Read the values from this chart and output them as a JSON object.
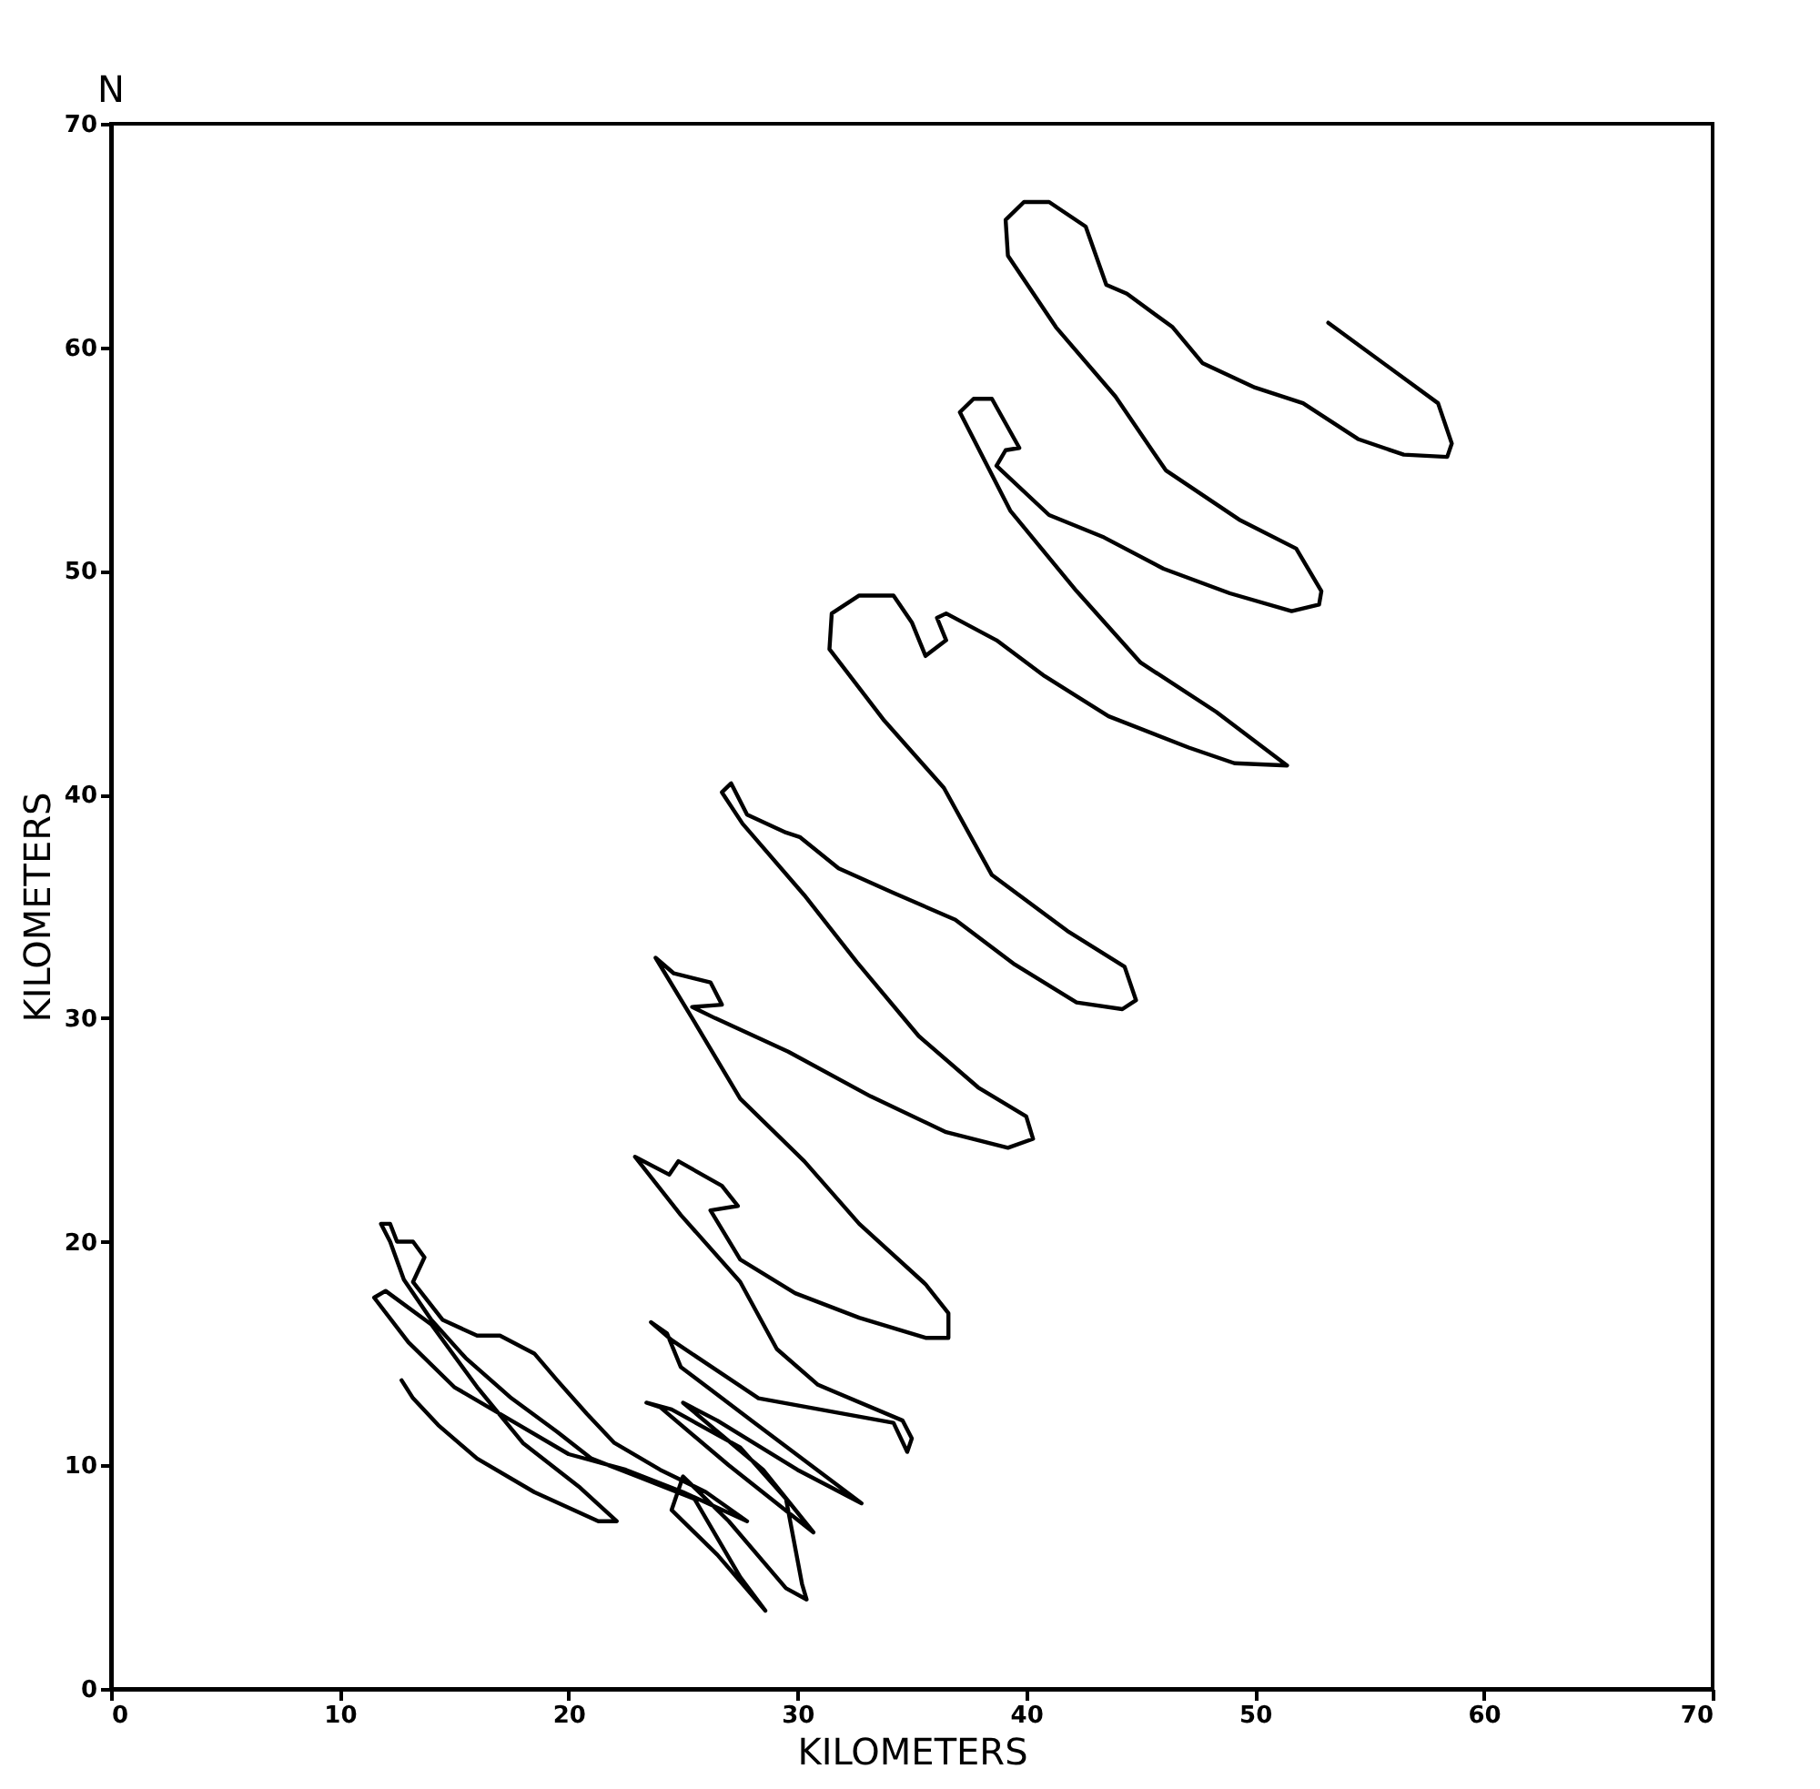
{
  "chart_data": {
    "type": "line",
    "xlabel": "KILOMETERS",
    "ylabel": "KILOMETERS",
    "annotations": [
      "N"
    ],
    "xlim": [
      0,
      70
    ],
    "ylim": [
      0,
      70
    ],
    "xticks": [
      0,
      10,
      20,
      30,
      40,
      50,
      60,
      70
    ],
    "yticks": [
      0,
      10,
      20,
      30,
      40,
      50,
      60,
      70
    ],
    "grid": false,
    "marker": "none",
    "line_style": "solid",
    "series": [
      {
        "color": "#000000",
        "x": [
          53.2,
          58.0,
          58.6,
          58.4,
          56.5,
          54.5,
          52.1,
          50.0,
          47.7,
          46.4,
          44.4,
          43.5,
          42.6,
          41.0,
          39.9,
          39.1,
          39.2,
          41.3,
          43.9,
          46.1,
          49.3,
          51.8,
          52.9,
          52.8,
          51.6,
          48.9,
          46.0,
          43.4,
          41.0,
          38.7,
          39.1,
          39.7,
          39.1,
          38.5,
          37.7,
          37.1,
          39.3,
          42.2,
          45.0,
          48.3,
          51.4,
          49.1,
          47.1,
          43.6,
          40.8,
          38.7,
          36.5,
          36.1,
          36.5,
          35.6,
          35.0,
          34.2,
          32.7,
          31.5,
          31.4,
          33.8,
          36.4,
          38.5,
          41.8,
          44.3,
          44.8,
          44.2,
          42.2,
          39.5,
          36.9,
          34.2,
          31.8,
          30.1,
          29.5,
          27.8,
          27.1,
          26.7,
          27.6,
          30.3,
          32.6,
          35.3,
          37.9,
          40.0,
          40.3,
          39.2,
          36.5,
          33.2,
          29.6,
          26.4,
          25.4,
          26.7,
          26.2,
          24.6,
          23.8,
          25.4,
          27.5,
          30.3,
          32.7,
          35.6,
          36.6,
          36.6,
          35.6,
          32.7,
          29.9,
          27.5,
          26.2,
          27.4,
          26.7,
          24.8,
          24.4,
          22.9,
          24.9,
          27.5,
          29.1,
          30.9,
          34.6,
          35.0,
          34.8,
          34.2,
          28.3,
          24.5,
          23.6,
          24.3,
          24.9,
          28.0,
          32.8,
          30.0,
          26.5,
          25.0,
          28.5,
          30.7,
          27.0,
          24.0,
          23.4,
          24.5,
          27.5,
          29.5,
          30.2,
          30.4,
          29.5,
          27.0,
          25.0,
          24.5,
          26.5,
          28.6,
          27.5,
          25.5,
          23.0,
          21.0,
          19.5,
          17.5,
          15.5,
          14.0,
          12.8,
          12.2,
          11.8,
          12.2,
          12.5,
          13.2,
          13.7,
          13.2,
          14.5,
          16.0,
          17.0,
          18.5,
          19.5,
          20.8,
          22.0,
          24.0,
          26.0,
          27.8,
          25.0,
          22.5,
          20.0,
          17.5,
          15.0,
          13.0,
          11.5,
          12.0,
          14.0,
          16.0,
          18.0,
          20.5,
          22.1,
          21.3,
          18.5,
          16.0,
          14.3,
          13.2,
          12.7
        ],
        "values": [
          61.1,
          57.5,
          55.7,
          55.1,
          55.2,
          55.9,
          57.5,
          58.2,
          59.3,
          60.9,
          62.4,
          62.8,
          65.4,
          66.5,
          66.5,
          65.7,
          64.1,
          60.9,
          57.8,
          54.5,
          52.3,
          51.0,
          49.1,
          48.5,
          48.2,
          49.0,
          50.1,
          51.5,
          52.5,
          54.7,
          55.4,
          55.5,
          56.6,
          57.7,
          57.7,
          57.1,
          52.7,
          49.1,
          45.9,
          43.7,
          41.3,
          41.4,
          42.1,
          43.5,
          45.3,
          46.9,
          48.1,
          47.9,
          46.9,
          46.2,
          47.7,
          48.9,
          48.9,
          48.1,
          46.5,
          43.3,
          40.3,
          36.4,
          33.9,
          32.3,
          30.8,
          30.4,
          30.7,
          32.4,
          34.4,
          35.6,
          36.7,
          38.1,
          38.3,
          39.1,
          40.5,
          40.1,
          38.7,
          35.5,
          32.5,
          29.2,
          26.9,
          25.6,
          24.6,
          24.2,
          24.9,
          26.5,
          28.5,
          30.0,
          30.5,
          30.6,
          31.6,
          32.0,
          32.7,
          30.0,
          26.4,
          23.6,
          20.8,
          18.1,
          16.8,
          15.7,
          15.7,
          16.6,
          17.7,
          19.2,
          21.4,
          21.6,
          22.5,
          23.6,
          23.0,
          23.8,
          21.2,
          18.2,
          15.2,
          13.6,
          12.0,
          11.2,
          10.6,
          11.9,
          13.0,
          15.6,
          16.4,
          15.9,
          14.4,
          12.0,
          8.3,
          9.8,
          12.0,
          12.8,
          9.8,
          7.0,
          10.0,
          12.6,
          12.8,
          12.5,
          10.8,
          8.5,
          4.7,
          4.0,
          4.5,
          7.5,
          9.5,
          8.0,
          6.0,
          3.5,
          5.0,
          8.5,
          9.5,
          10.3,
          11.5,
          13.0,
          14.8,
          16.5,
          18.3,
          20.0,
          20.8,
          20.8,
          20.0,
          20.0,
          19.3,
          18.2,
          16.5,
          15.8,
          15.8,
          15.0,
          13.8,
          12.3,
          11.0,
          9.8,
          8.8,
          7.5,
          8.8,
          9.8,
          10.5,
          12.0,
          13.5,
          15.5,
          17.5,
          17.8,
          16.3,
          13.5,
          11.0,
          9.0,
          7.5,
          7.5,
          8.8,
          10.3,
          11.8,
          13.0,
          13.8
        ]
      }
    ]
  }
}
